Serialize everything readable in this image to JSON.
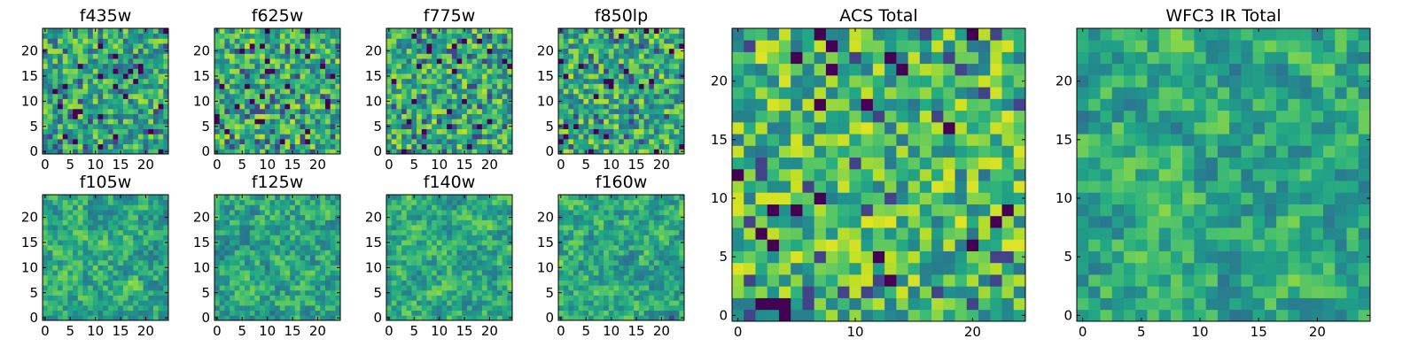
{
  "chart_data": [
    {
      "type": "heatmap",
      "title": "f435w",
      "grid_size": 25,
      "xticks": [
        0,
        5,
        10,
        15,
        20
      ],
      "yticks": [
        0,
        5,
        10,
        15,
        20
      ],
      "colormap": "viridis",
      "seed": 11,
      "smooth": 0,
      "bias": 0.55
    },
    {
      "type": "heatmap",
      "title": "f625w",
      "grid_size": 25,
      "xticks": [
        0,
        5,
        10,
        15,
        20
      ],
      "yticks": [
        0,
        5,
        10,
        15,
        20
      ],
      "colormap": "viridis",
      "seed": 23,
      "smooth": 0,
      "bias": 0.62
    },
    {
      "type": "heatmap",
      "title": "f775w",
      "grid_size": 25,
      "xticks": [
        0,
        5,
        10,
        15,
        20
      ],
      "yticks": [
        0,
        5,
        10,
        15,
        20
      ],
      "colormap": "viridis",
      "seed": 37,
      "smooth": 0,
      "bias": 0.6
    },
    {
      "type": "heatmap",
      "title": "f850lp",
      "grid_size": 25,
      "xticks": [
        0,
        5,
        10,
        15,
        20
      ],
      "yticks": [
        0,
        5,
        10,
        15,
        20
      ],
      "colormap": "viridis",
      "seed": 41,
      "smooth": 0,
      "bias": 0.6
    },
    {
      "type": "heatmap",
      "title": "f105w",
      "grid_size": 25,
      "xticks": [
        0,
        5,
        10,
        15,
        20
      ],
      "yticks": [
        0,
        5,
        10,
        15,
        20
      ],
      "colormap": "viridis",
      "seed": 53,
      "smooth": 1,
      "bias": 0.62
    },
    {
      "type": "heatmap",
      "title": "f125w",
      "grid_size": 25,
      "xticks": [
        0,
        5,
        10,
        15,
        20
      ],
      "yticks": [
        0,
        5,
        10,
        15,
        20
      ],
      "colormap": "viridis",
      "seed": 67,
      "smooth": 1,
      "bias": 0.6
    },
    {
      "type": "heatmap",
      "title": "f140w",
      "grid_size": 25,
      "xticks": [
        0,
        5,
        10,
        15,
        20
      ],
      "yticks": [
        0,
        5,
        10,
        15,
        20
      ],
      "colormap": "viridis",
      "seed": 71,
      "smooth": 1,
      "bias": 0.62
    },
    {
      "type": "heatmap",
      "title": "f160w",
      "grid_size": 25,
      "xticks": [
        0,
        5,
        10,
        15,
        20
      ],
      "yticks": [
        0,
        5,
        10,
        15,
        20
      ],
      "colormap": "viridis",
      "seed": 83,
      "smooth": 1,
      "bias": 0.62
    },
    {
      "type": "heatmap",
      "title": "ACS Total",
      "grid_size": 25,
      "xticks": [
        0,
        10,
        20
      ],
      "yticks": [
        0,
        5,
        10,
        15,
        20
      ],
      "colormap": "viridis",
      "seed": 97,
      "smooth": 0,
      "bias": 0.7
    },
    {
      "type": "heatmap",
      "title": "WFC3 IR Total",
      "grid_size": 25,
      "xticks": [
        0,
        5,
        10,
        15,
        20
      ],
      "yticks": [
        0,
        5,
        10,
        15,
        20
      ],
      "colormap": "viridis",
      "seed": 101,
      "smooth": 1,
      "bias": 0.62
    }
  ]
}
